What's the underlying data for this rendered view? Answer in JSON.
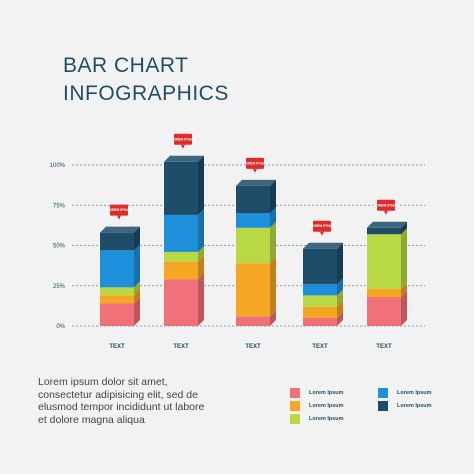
{
  "title": {
    "line1": "BAR CHART",
    "line2": "INFOGRAPHICS"
  },
  "description": "Lorem ipsum dolor sit amet, consectetur adipisicing elit, sed de elusmod tempor incididunt ut labore et dolore magna aliqua",
  "legend": [
    {
      "label": "Lorem Ipsum",
      "color": "#f07179"
    },
    {
      "label": "Lorem Ipsum",
      "color": "#1e8fd9"
    },
    {
      "label": "Lorem Ipsum",
      "color": "#f5a623"
    },
    {
      "label": "Lorem Ipsum",
      "color": "#1d4d68"
    },
    {
      "label": "Lorem Ipsum",
      "color": "#b8d943"
    }
  ],
  "callout_text": "LOREM IPSUM",
  "chart_data": {
    "type": "bar",
    "stacked": true,
    "categories": [
      "TEXT",
      "TEXT",
      "TEXT",
      "TEXT",
      "TEXT"
    ],
    "y_ticks": [
      "0%",
      "25%",
      "50%",
      "75%",
      "100%"
    ],
    "ylim": [
      0,
      100
    ],
    "grid": true,
    "series": [
      {
        "values": [
          14,
          29,
          6,
          5,
          18
        ],
        "color": "#f07179"
      },
      {
        "values": [
          5,
          11,
          33,
          7,
          5
        ],
        "color": "#f5a623"
      },
      {
        "values": [
          5,
          6,
          22,
          7,
          34
        ],
        "color": "#b8d943"
      },
      {
        "values": [
          23,
          23,
          9,
          7,
          0
        ],
        "color": "#1e8fd9"
      },
      {
        "values": [
          11,
          33,
          17,
          22,
          4
        ],
        "color": "#1d4d68"
      }
    ]
  }
}
